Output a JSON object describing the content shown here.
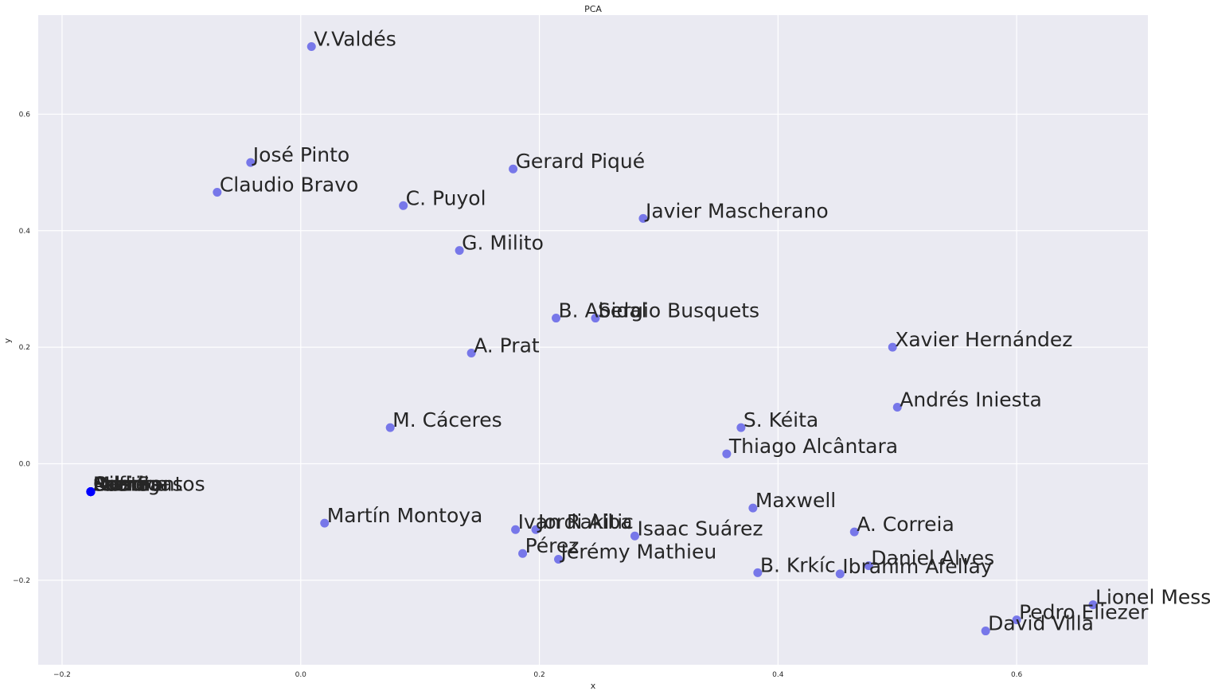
{
  "chart_data": {
    "type": "scatter",
    "title": "PCA",
    "xlabel": "x",
    "ylabel": "y",
    "xlim": [
      -0.22,
      0.71
    ],
    "ylim": [
      -0.345,
      0.77
    ],
    "xticks": [
      -0.2,
      0.0,
      0.2,
      0.4,
      0.6
    ],
    "yticks": [
      -0.2,
      0.0,
      0.2,
      0.4,
      0.6
    ],
    "grid": true,
    "colors": {
      "background": "#eaeaf2",
      "grid": "#ffffff",
      "point": "#5050e6",
      "cluster_point": "#0000ff"
    },
    "points": [
      {
        "name": "V.Valdés",
        "x": 0.009,
        "y": 0.716
      },
      {
        "name": "José Pinto",
        "x": -0.042,
        "y": 0.517
      },
      {
        "name": "Gerard Piqué",
        "x": 0.178,
        "y": 0.506
      },
      {
        "name": "Claudio Bravo",
        "x": -0.07,
        "y": 0.466
      },
      {
        "name": "C. Puyol",
        "x": 0.086,
        "y": 0.443
      },
      {
        "name": "Javier Mascherano",
        "x": 0.287,
        "y": 0.421
      },
      {
        "name": "G. Milito",
        "x": 0.133,
        "y": 0.366
      },
      {
        "name": "B. Abidal",
        "x": 0.214,
        "y": 0.25
      },
      {
        "name": "Sergio Busquets",
        "x": 0.247,
        "y": 0.25
      },
      {
        "name": "Xavier Hernández",
        "x": 0.496,
        "y": 0.2
      },
      {
        "name": "A. Prat",
        "x": 0.143,
        "y": 0.19
      },
      {
        "name": "Andrés Iniesta",
        "x": 0.5,
        "y": 0.097
      },
      {
        "name": "M. Cáceres",
        "x": 0.075,
        "y": 0.062
      },
      {
        "name": "S. Kéita",
        "x": 0.369,
        "y": 0.062
      },
      {
        "name": "Thiago Alcântara",
        "x": 0.357,
        "y": 0.017
      },
      {
        "name": "Maxwell",
        "x": 0.379,
        "y": -0.076
      },
      {
        "name": "Martín Montoya",
        "x": 0.02,
        "y": -0.102
      },
      {
        "name": "Ivan Rakitic",
        "x": 0.18,
        "y": -0.113
      },
      {
        "name": "Jordi Alba",
        "x": 0.197,
        "y": -0.113
      },
      {
        "name": "A. Correia",
        "x": 0.464,
        "y": -0.117
      },
      {
        "name": "Isaac Suárez",
        "x": 0.28,
        "y": -0.124
      },
      {
        "name": "Pérez",
        "x": 0.186,
        "y": -0.154
      },
      {
        "name": "Jérémy Mathieu",
        "x": 0.216,
        "y": -0.164
      },
      {
        "name": "Daniel Alves",
        "x": 0.476,
        "y": -0.175
      },
      {
        "name": "B. Krkíc",
        "x": 0.383,
        "y": -0.187
      },
      {
        "name": "Ibrahim Afellay",
        "x": 0.452,
        "y": -0.189
      },
      {
        "name": "Lionel Messi",
        "x": 0.664,
        "y": -0.242
      },
      {
        "name": "Pedro Eliezer",
        "x": 0.6,
        "y": -0.268
      },
      {
        "name": "David Villa",
        "x": 0.574,
        "y": -0.287
      }
    ],
    "cluster": {
      "x": -0.176,
      "y": -0.048,
      "labels": [
        "Fabregas",
        "Fabio",
        "Santos",
        "Rafinha",
        "Sandro",
        "Munir",
        "Adama",
        "Oier",
        "Rodri",
        "Dos Santos"
      ]
    }
  }
}
